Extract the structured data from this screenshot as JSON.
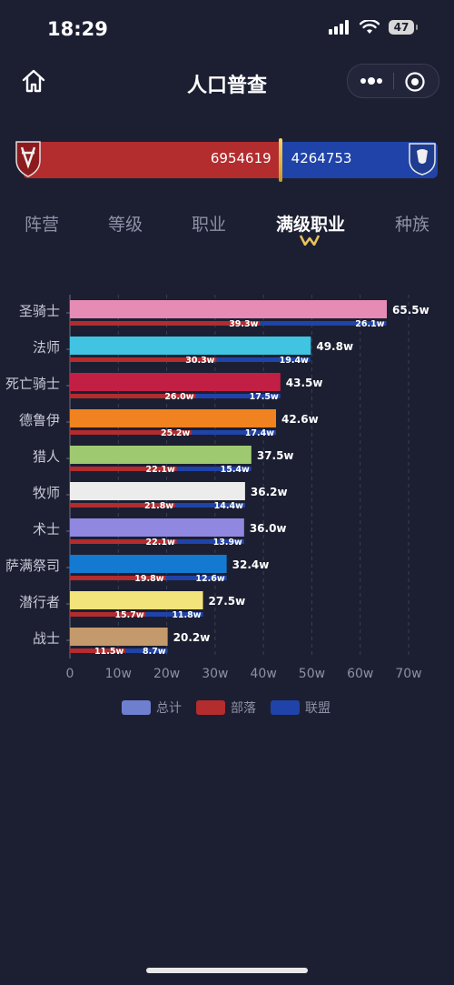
{
  "status": {
    "time": "18:29",
    "battery": "47"
  },
  "nav": {
    "title": "人口普查"
  },
  "faction": {
    "horde_value": 6954619,
    "horde_label": "6954619",
    "alliance_value": 4264753,
    "alliance_label": "4264753",
    "horde_color": "#b32c2e",
    "alliance_color": "#1f43a8"
  },
  "tabs": [
    {
      "label": "阵营",
      "active": false
    },
    {
      "label": "等级",
      "active": false
    },
    {
      "label": "职业",
      "active": false
    },
    {
      "label": "满级职业",
      "active": true
    },
    {
      "label": "种族",
      "active": false
    }
  ],
  "chart_data": {
    "type": "bar",
    "orientation": "horizontal",
    "categories": [
      "圣骑士",
      "法师",
      "死亡骑士",
      "德鲁伊",
      "猎人",
      "牧师",
      "术士",
      "萨满祭司",
      "潜行者",
      "战士"
    ],
    "category_colors": [
      "#e58bb4",
      "#40c4e2",
      "#c21f45",
      "#f0821f",
      "#9fc971",
      "#ececec",
      "#8f87e0",
      "#1479d0",
      "#f2e47a",
      "#c49a6c"
    ],
    "series": [
      {
        "name": "总计",
        "color": "#6e7fd0",
        "values": [
          65.5,
          49.8,
          43.5,
          42.6,
          37.5,
          36.2,
          36.0,
          32.4,
          27.5,
          20.2
        ],
        "labels": [
          "65.5w",
          "49.8w",
          "43.5w",
          "42.6w",
          "37.5w",
          "36.2w",
          "36.0w",
          "32.4w",
          "27.5w",
          "20.2w"
        ]
      },
      {
        "name": "部落",
        "color": "#b32c2e",
        "values": [
          39.3,
          30.3,
          26.0,
          25.2,
          22.1,
          21.8,
          22.1,
          19.8,
          15.7,
          11.5
        ],
        "labels": [
          "39.3w",
          "30.3w",
          "26.0w",
          "25.2w",
          "22.1w",
          "21.8w",
          "22.1w",
          "19.8w",
          "15.7w",
          "11.5w"
        ]
      },
      {
        "name": "联盟",
        "color": "#1f43a8",
        "values": [
          26.1,
          19.4,
          17.5,
          17.4,
          15.4,
          14.4,
          13.9,
          12.6,
          11.8,
          8.7
        ],
        "labels": [
          "26.1w",
          "19.4w",
          "17.5w",
          "17.4w",
          "15.4w",
          "14.4w",
          "13.9w",
          "12.6w",
          "11.8w",
          "8.7w"
        ]
      }
    ],
    "xlim": [
      0,
      70
    ],
    "xticks": [
      "0",
      "10w",
      "20w",
      "30w",
      "40w",
      "50w",
      "60w",
      "70w"
    ],
    "grid": "vertical-dashed",
    "legend_position": "bottom"
  }
}
